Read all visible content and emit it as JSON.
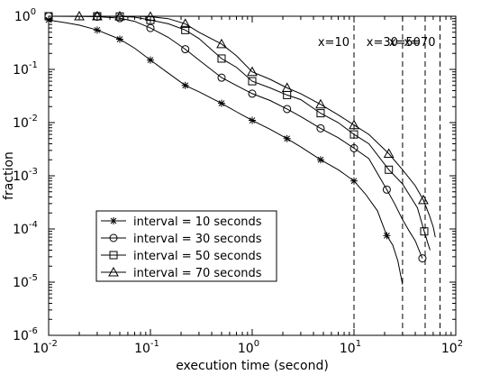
{
  "chart_data": {
    "type": "line",
    "title": "",
    "xlabel": "execution time (second)",
    "ylabel": "fraction",
    "xscale": "log",
    "yscale": "log",
    "xlim": [
      0.01,
      100
    ],
    "ylim": [
      1e-06,
      1
    ],
    "grid": false,
    "legend_position": "lower-left",
    "x_ticks": [
      {
        "base": "10",
        "exp": "-2"
      },
      {
        "base": "10",
        "exp": "-1"
      },
      {
        "base": "10",
        "exp": "0"
      },
      {
        "base": "10",
        "exp": "1"
      },
      {
        "base": "10",
        "exp": "2"
      }
    ],
    "y_ticks": [
      {
        "base": "10",
        "exp": "0"
      },
      {
        "base": "10",
        "exp": "-1"
      },
      {
        "base": "10",
        "exp": "-2"
      },
      {
        "base": "10",
        "exp": "-3"
      },
      {
        "base": "10",
        "exp": "-4"
      },
      {
        "base": "10",
        "exp": "-5"
      },
      {
        "base": "10",
        "exp": "-6"
      }
    ],
    "vertical_lines": [
      {
        "x": 10,
        "label": "x=10"
      },
      {
        "x": 30,
        "label": "x=30"
      },
      {
        "x": 50,
        "label": "x=50"
      },
      {
        "x": 70,
        "label": "x=70"
      }
    ],
    "series": [
      {
        "name": "interval = 10 seconds",
        "marker": "star",
        "color": "#000000",
        "x": [
          0.01,
          0.015,
          0.02,
          0.03,
          0.05,
          0.07,
          0.1,
          0.15,
          0.22,
          0.3,
          0.5,
          0.7,
          1.0,
          1.5,
          2.2,
          3.0,
          4.7,
          7.0,
          10,
          13,
          17,
          21,
          24,
          27,
          30
        ],
        "y": [
          0.85,
          0.75,
          0.68,
          0.55,
          0.37,
          0.25,
          0.15,
          0.085,
          0.05,
          0.038,
          0.023,
          0.016,
          0.011,
          0.0075,
          0.005,
          0.0035,
          0.002,
          0.0013,
          0.0008,
          0.00045,
          0.00022,
          7.5e-05,
          5e-05,
          2.5e-05,
          9e-06
        ],
        "marker_x": [
          0.01,
          0.03,
          0.05,
          0.1,
          0.22,
          0.5,
          1.0,
          2.2,
          4.7,
          10,
          21
        ],
        "marker_y": [
          0.85,
          0.55,
          0.37,
          0.15,
          0.05,
          0.023,
          0.011,
          0.005,
          0.002,
          0.0008,
          7.5e-05
        ]
      },
      {
        "name": "interval = 30 seconds",
        "marker": "circle",
        "color": "#000000",
        "x": [
          0.01,
          0.02,
          0.03,
          0.05,
          0.07,
          0.1,
          0.15,
          0.22,
          0.3,
          0.5,
          0.7,
          1.0,
          1.5,
          2.2,
          3.0,
          4.7,
          7.0,
          10,
          14,
          21,
          25,
          30,
          35,
          40,
          47
        ],
        "y": [
          1.0,
          0.99,
          0.98,
          0.92,
          0.8,
          0.6,
          0.4,
          0.24,
          0.15,
          0.07,
          0.05,
          0.035,
          0.026,
          0.018,
          0.013,
          0.0078,
          0.0052,
          0.0033,
          0.0021,
          0.00055,
          0.0003,
          0.00015,
          9e-05,
          6e-05,
          2.8e-05
        ],
        "marker_x": [
          0.01,
          0.03,
          0.05,
          0.1,
          0.22,
          0.5,
          1.0,
          2.2,
          4.7,
          10,
          21,
          47
        ],
        "marker_y": [
          1.0,
          0.98,
          0.92,
          0.6,
          0.24,
          0.07,
          0.035,
          0.018,
          0.0078,
          0.0033,
          0.00055,
          2.8e-05
        ]
      },
      {
        "name": "interval = 50 seconds",
        "marker": "square",
        "color": "#000000",
        "x": [
          0.01,
          0.03,
          0.05,
          0.07,
          0.1,
          0.15,
          0.22,
          0.3,
          0.5,
          0.7,
          1.0,
          1.5,
          2.2,
          3.0,
          4.7,
          7.0,
          10,
          14,
          22,
          30,
          36,
          42,
          49,
          53,
          56
        ],
        "y": [
          1.0,
          1.0,
          0.99,
          0.96,
          0.85,
          0.72,
          0.55,
          0.38,
          0.16,
          0.11,
          0.06,
          0.045,
          0.033,
          0.027,
          0.015,
          0.01,
          0.006,
          0.004,
          0.0013,
          0.0007,
          0.0004,
          0.00025,
          9e-05,
          5.5e-05,
          4e-05
        ],
        "marker_x": [
          0.01,
          0.03,
          0.05,
          0.1,
          0.22,
          0.5,
          1.0,
          2.2,
          4.7,
          10,
          22,
          49
        ],
        "marker_y": [
          1.0,
          1.0,
          0.99,
          0.85,
          0.55,
          0.16,
          0.06,
          0.033,
          0.015,
          0.006,
          0.0013,
          9e-05
        ]
      },
      {
        "name": "interval = 70 seconds",
        "marker": "triangle",
        "color": "#000000",
        "x": [
          0.02,
          0.03,
          0.05,
          0.07,
          0.1,
          0.15,
          0.22,
          0.3,
          0.5,
          0.7,
          1.0,
          1.5,
          2.2,
          3.0,
          4.7,
          7.0,
          10,
          14,
          22,
          30,
          40,
          48,
          55,
          60,
          63
        ],
        "y": [
          1.0,
          1.0,
          1.0,
          1.0,
          0.98,
          0.9,
          0.72,
          0.5,
          0.3,
          0.18,
          0.09,
          0.065,
          0.045,
          0.035,
          0.022,
          0.014,
          0.009,
          0.006,
          0.0026,
          0.0013,
          0.00065,
          0.00035,
          0.00018,
          0.00011,
          7e-05
        ],
        "marker_x": [
          0.02,
          0.03,
          0.05,
          0.1,
          0.22,
          0.5,
          1.0,
          2.2,
          4.7,
          10,
          22,
          48
        ],
        "marker_y": [
          1.0,
          1.0,
          1.0,
          0.98,
          0.72,
          0.3,
          0.09,
          0.045,
          0.022,
          0.009,
          0.0026,
          0.00035
        ]
      }
    ]
  }
}
